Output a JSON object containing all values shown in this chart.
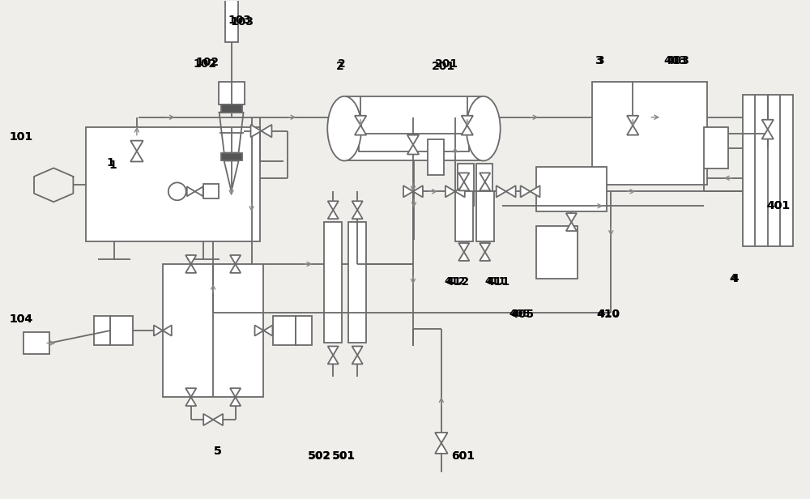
{
  "bg_color": "#f0eeea",
  "line_color": "#6a6a6a",
  "arrow_color": "#888888",
  "label_color": "#000000",
  "lw": 1.3
}
